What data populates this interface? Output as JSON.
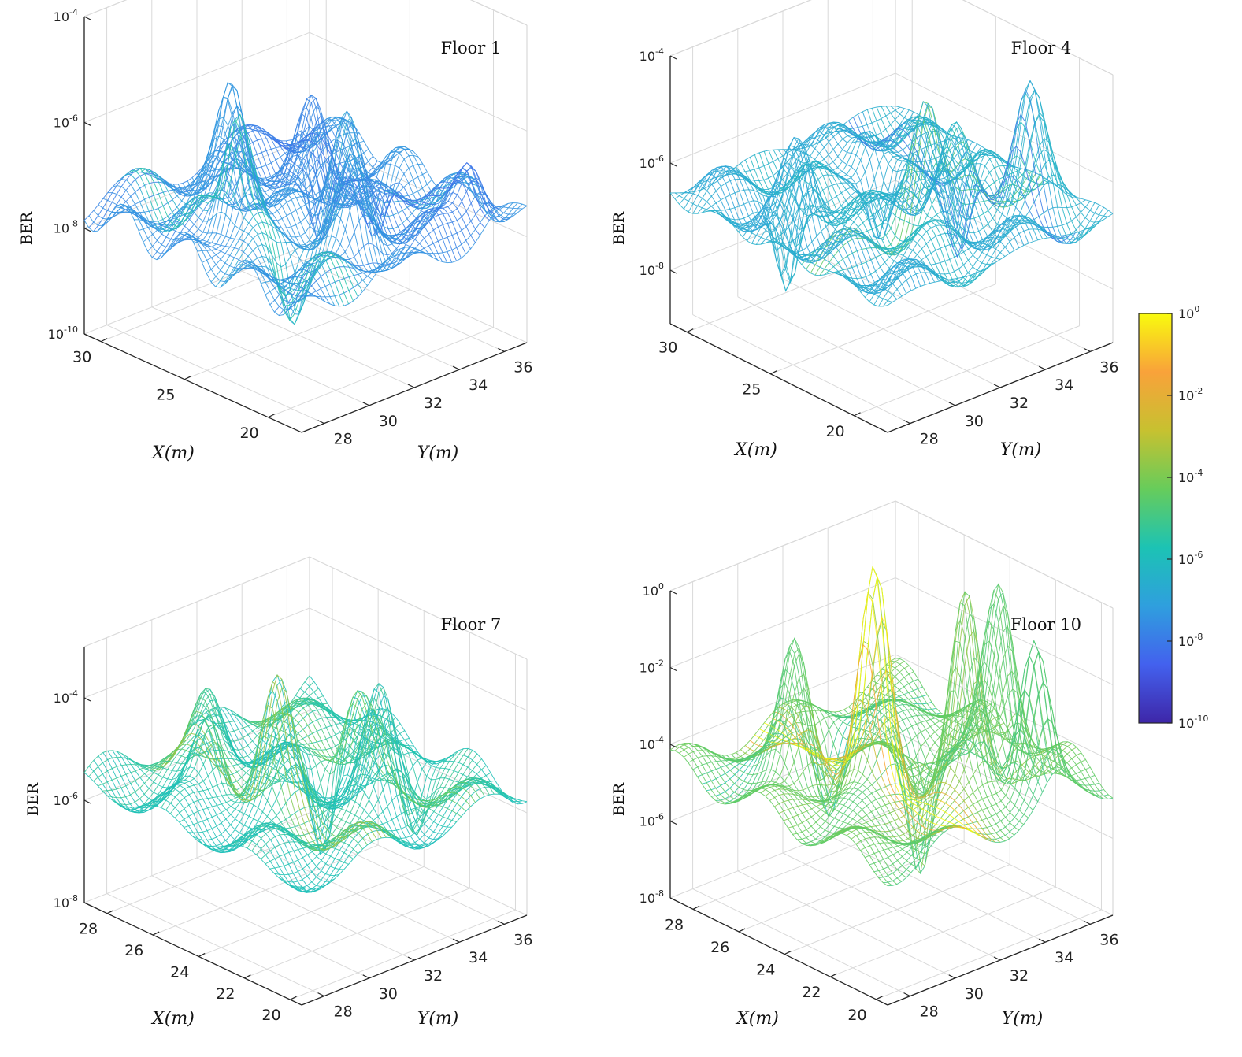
{
  "colormap_stops": [
    "#3e26a8",
    "#4361ee",
    "#2f9fde",
    "#1cc3b4",
    "#67cc5b",
    "#c7c130",
    "#f9a23a",
    "#f9fb0e"
  ],
  "chart_data": [
    {
      "type": "surface",
      "title": "Floor 1",
      "xlabel": "X(m)",
      "ylabel": "Y(m)",
      "zlabel": "BER",
      "x_ticks": [
        "30",
        "25",
        "20"
      ],
      "y_ticks": [
        "28",
        "30",
        "32",
        "34",
        "36"
      ],
      "z_ticks": [
        "10^-4",
        "10^-6",
        "10^-8",
        "10^-10"
      ],
      "xlim": [
        18,
        31
      ],
      "ylim": [
        27,
        37
      ],
      "zlim_log10": [
        -10,
        -4
      ],
      "base_log10": -7.6,
      "peaks": [
        {
          "x": 24.8,
          "y": 29.2,
          "log_ber": -4.9
        },
        {
          "x": 27.5,
          "y": 31.0,
          "log_ber": -5.3
        },
        {
          "x": 22.8,
          "y": 32.5,
          "log_ber": -5.5
        },
        {
          "x": 20.5,
          "y": 31.2,
          "log_ber": -6.0
        },
        {
          "x": 19.5,
          "y": 35.6,
          "log_ber": -6.3
        },
        {
          "x": 26.0,
          "y": 33.5,
          "log_ber": -6.0
        }
      ],
      "valleys": [
        {
          "x": 27.0,
          "y": 34.5,
          "log_ber": -9.3
        },
        {
          "x": 22.0,
          "y": 29.5,
          "log_ber": -8.8
        },
        {
          "x": 25.0,
          "y": 35.5,
          "log_ber": -9.0
        }
      ]
    },
    {
      "type": "surface",
      "title": "Floor 4",
      "xlabel": "X(m)",
      "ylabel": "Y(m)",
      "zlabel": "BER",
      "x_ticks": [
        "30",
        "25",
        "20"
      ],
      "y_ticks": [
        "28",
        "30",
        "32",
        "34",
        "36"
      ],
      "z_ticks": [
        "10^-4",
        "10^-6",
        "10^-8"
      ],
      "xlim": [
        18,
        31
      ],
      "ylim": [
        27,
        37
      ],
      "zlim_log10": [
        -9,
        -4
      ],
      "base_log10": -6.6,
      "peaks": [
        {
          "x": 22.5,
          "y": 32.0,
          "log_ber": -4.3
        },
        {
          "x": 21.0,
          "y": 35.5,
          "log_ber": -4.7
        },
        {
          "x": 26.0,
          "y": 29.0,
          "log_ber": -5.4
        },
        {
          "x": 23.5,
          "y": 34.0,
          "log_ber": -5.2
        },
        {
          "x": 28.0,
          "y": 33.5,
          "log_ber": -5.6
        }
      ],
      "valleys": [
        {
          "x": 28.0,
          "y": 30.0,
          "log_ber": -8.6
        },
        {
          "x": 24.5,
          "y": 35.0,
          "log_ber": -8.4
        },
        {
          "x": 26.5,
          "y": 33.0,
          "log_ber": -8.2
        }
      ]
    },
    {
      "type": "surface",
      "title": "Floor 7",
      "xlabel": "X(m)",
      "ylabel": "Y(m)",
      "zlabel": "BER",
      "x_ticks": [
        "28",
        "26",
        "24",
        "22",
        "20"
      ],
      "y_ticks": [
        "28",
        "30",
        "32",
        "34",
        "36"
      ],
      "z_ticks": [
        "10^-4",
        "10^-6",
        "10^-8"
      ],
      "xlim": [
        19.5,
        29
      ],
      "ylim": [
        27,
        37
      ],
      "zlim_log10": [
        -8,
        -3
      ],
      "base_log10": -5.6,
      "peaks": [
        {
          "x": 24.0,
          "y": 30.5,
          "log_ber": -3.5
        },
        {
          "x": 22.0,
          "y": 33.0,
          "log_ber": -3.7
        },
        {
          "x": 26.0,
          "y": 29.5,
          "log_ber": -4.0
        },
        {
          "x": 24.5,
          "y": 34.5,
          "log_ber": -4.3
        },
        {
          "x": 28.0,
          "y": 31.5,
          "log_ber": -4.4
        }
      ],
      "valleys": [
        {
          "x": 25.0,
          "y": 33.5,
          "log_ber": -7.6
        },
        {
          "x": 23.0,
          "y": 35.5,
          "log_ber": -7.0
        }
      ]
    },
    {
      "type": "surface",
      "title": "Floor 10",
      "xlabel": "X(m)",
      "ylabel": "Y(m)",
      "zlabel": "BER",
      "x_ticks": [
        "28",
        "26",
        "24",
        "22",
        "20"
      ],
      "y_ticks": [
        "28",
        "30",
        "32",
        "34",
        "36"
      ],
      "z_ticks": [
        "10^0",
        "10^-2",
        "10^-4",
        "10^-6",
        "10^-8"
      ],
      "xlim": [
        19.5,
        29
      ],
      "ylim": [
        27,
        37
      ],
      "zlim_log10": [
        -8,
        0
      ],
      "base_log10": -4.5,
      "peaks": [
        {
          "x": 24.0,
          "y": 31.0,
          "log_ber": 1.2
        },
        {
          "x": 22.0,
          "y": 33.0,
          "log_ber": 0.6
        },
        {
          "x": 20.5,
          "y": 34.5,
          "log_ber": -0.5
        },
        {
          "x": 26.0,
          "y": 29.5,
          "log_ber": -1.0
        },
        {
          "x": 23.0,
          "y": 35.5,
          "log_ber": -0.2
        }
      ],
      "valleys": [
        {
          "x": 25.0,
          "y": 34.0,
          "log_ber": -7.6
        },
        {
          "x": 27.5,
          "y": 32.5,
          "log_ber": -6.5
        }
      ]
    }
  ],
  "colorbar": {
    "range_log10": [
      -10,
      0
    ],
    "ticks": [
      "10^0",
      "10^-2",
      "10^-4",
      "10^-6",
      "10^-8",
      "10^-10"
    ]
  }
}
